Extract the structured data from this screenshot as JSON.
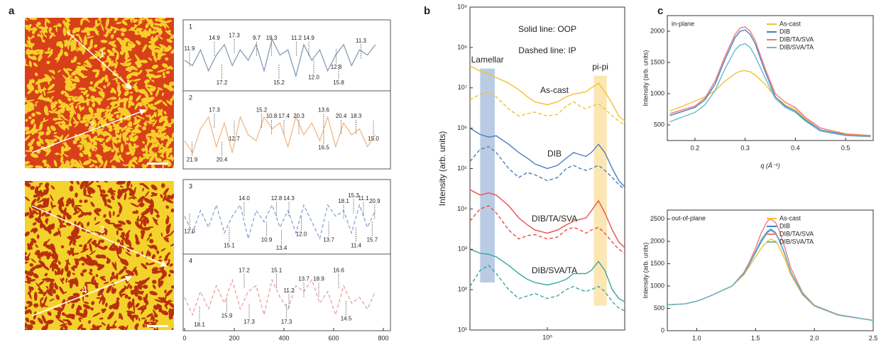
{
  "panels": [
    "a",
    "b",
    "c"
  ],
  "chart_data": [
    {
      "type": "line",
      "label": "1",
      "color": "#7d93b2",
      "xlim": [
        0,
        800
      ],
      "ylim": [
        0,
        10
      ],
      "x": [
        0,
        32,
        64,
        96,
        128,
        160,
        192,
        224,
        256,
        288,
        320,
        352,
        384,
        416,
        448,
        480,
        512,
        544,
        576,
        608,
        640,
        672,
        704,
        736,
        768
      ],
      "values": [
        5,
        4,
        7,
        3,
        6,
        8,
        4,
        7,
        5,
        8,
        3,
        9,
        6,
        7,
        2,
        8,
        5,
        7,
        3,
        6,
        8,
        4,
        7,
        6,
        8
      ],
      "annotations": [
        {
          "text": "11.9",
          "x": 20,
          "y": 6.5
        },
        {
          "text": "14.9",
          "x": 120,
          "y": 8.5
        },
        {
          "text": "17.2",
          "x": 150,
          "y": 1.5
        },
        {
          "text": "17.3",
          "x": 200,
          "y": 9
        },
        {
          "text": "9.7",
          "x": 290,
          "y": 8.5
        },
        {
          "text": "19.3",
          "x": 350,
          "y": 8.5
        },
        {
          "text": "15.2",
          "x": 380,
          "y": 1.5
        },
        {
          "text": "11.2",
          "x": 450,
          "y": 8.5
        },
        {
          "text": "14.9",
          "x": 500,
          "y": 8.5
        },
        {
          "text": "12.0",
          "x": 520,
          "y": 2.5
        },
        {
          "text": "12.8",
          "x": 610,
          "y": 4.5
        },
        {
          "text": "15.8",
          "x": 620,
          "y": 1.5
        },
        {
          "text": "11.3",
          "x": 710,
          "y": 8
        }
      ]
    },
    {
      "type": "line",
      "label": "2",
      "color": "#f2b27a",
      "xlim": [
        0,
        800
      ],
      "ylim": [
        0,
        10
      ],
      "x": [
        0,
        32,
        64,
        96,
        128,
        160,
        192,
        224,
        256,
        288,
        320,
        352,
        384,
        416,
        448,
        480,
        512,
        544,
        576,
        608,
        640,
        672,
        704,
        736,
        768
      ],
      "values": [
        4,
        2,
        6,
        8,
        3,
        7,
        2,
        8,
        5,
        4,
        8,
        6,
        7,
        3,
        8,
        5,
        7,
        4,
        8,
        3,
        7,
        5,
        6,
        3,
        5
      ],
      "annotations": [
        {
          "text": "21.9",
          "x": 30,
          "y": 1.5
        },
        {
          "text": "17.3",
          "x": 120,
          "y": 8.5
        },
        {
          "text": "20.4",
          "x": 150,
          "y": 1.5
        },
        {
          "text": "12.7",
          "x": 200,
          "y": 5
        },
        {
          "text": "15.2",
          "x": 310,
          "y": 8.5
        },
        {
          "text": "10.8",
          "x": 350,
          "y": 7.5
        },
        {
          "text": "17.4",
          "x": 400,
          "y": 7.5
        },
        {
          "text": "20.3",
          "x": 460,
          "y": 7.5
        },
        {
          "text": "13.6",
          "x": 560,
          "y": 8.5
        },
        {
          "text": "16.5",
          "x": 560,
          "y": 3.5
        },
        {
          "text": "20.4",
          "x": 630,
          "y": 7.5
        },
        {
          "text": "18.3",
          "x": 690,
          "y": 7.5
        },
        {
          "text": "15.0",
          "x": 760,
          "y": 5
        }
      ]
    },
    {
      "type": "line",
      "label": "3",
      "color": "#7d9fd0",
      "dashed": true,
      "xlim": [
        0,
        800
      ],
      "ylim": [
        0,
        10
      ],
      "x": [
        0,
        32,
        64,
        96,
        128,
        160,
        192,
        224,
        256,
        288,
        320,
        352,
        384,
        416,
        448,
        480,
        512,
        544,
        576,
        608,
        640,
        672,
        704,
        736,
        768
      ],
      "values": [
        6,
        3,
        7,
        4,
        8,
        3,
        6,
        8,
        2,
        7,
        5,
        8,
        4,
        7,
        3,
        8,
        5,
        2,
        8,
        6,
        7,
        3,
        8,
        4,
        7
      ],
      "annotations": [
        {
          "text": "12.0",
          "x": 20,
          "y": 4
        },
        {
          "text": "15.1",
          "x": 180,
          "y": 1.5
        },
        {
          "text": "14.0",
          "x": 240,
          "y": 8.5
        },
        {
          "text": "10.9",
          "x": 330,
          "y": 2.5
        },
        {
          "text": "12.8",
          "x": 370,
          "y": 8.5
        },
        {
          "text": "13.4",
          "x": 390,
          "y": 1
        },
        {
          "text": "14.3",
          "x": 420,
          "y": 8.5
        },
        {
          "text": "12.0",
          "x": 470,
          "y": 3.5
        },
        {
          "text": "13.7",
          "x": 580,
          "y": 2.5
        },
        {
          "text": "18.1",
          "x": 640,
          "y": 8
        },
        {
          "text": "15.3",
          "x": 680,
          "y": 9
        },
        {
          "text": "11.4",
          "x": 690,
          "y": 1.5
        },
        {
          "text": "11.1",
          "x": 720,
          "y": 8.5
        },
        {
          "text": "15.7",
          "x": 755,
          "y": 2.5
        },
        {
          "text": "20.9",
          "x": 765,
          "y": 8
        }
      ]
    },
    {
      "type": "line",
      "label": "4",
      "color": "#e89a9a",
      "dashed": true,
      "xlim": [
        0,
        800
      ],
      "ylim": [
        0,
        10
      ],
      "xticks": [
        0,
        200,
        400,
        600,
        800
      ],
      "x": [
        0,
        32,
        64,
        96,
        128,
        160,
        192,
        224,
        256,
        288,
        320,
        352,
        384,
        416,
        448,
        480,
        512,
        544,
        576,
        608,
        640,
        672,
        704,
        736,
        768
      ],
      "values": [
        5,
        2,
        6,
        3,
        7,
        4,
        8,
        3,
        6,
        7,
        2,
        8,
        5,
        3,
        7,
        6,
        8,
        4,
        6,
        2,
        7,
        4,
        5,
        3,
        6
      ],
      "annotations": [
        {
          "text": "18.1",
          "x": 60,
          "y": 1
        },
        {
          "text": "15.9",
          "x": 170,
          "y": 2.5
        },
        {
          "text": "17.2",
          "x": 240,
          "y": 9
        },
        {
          "text": "17.3",
          "x": 260,
          "y": 1.5
        },
        {
          "text": "15.1",
          "x": 370,
          "y": 9
        },
        {
          "text": "17.3",
          "x": 410,
          "y": 1.5
        },
        {
          "text": "11.2",
          "x": 420,
          "y": 5.5
        },
        {
          "text": "13.7",
          "x": 480,
          "y": 7.5
        },
        {
          "text": "18.9",
          "x": 540,
          "y": 7.5
        },
        {
          "text": "16.6",
          "x": 620,
          "y": 9
        },
        {
          "text": "14.5",
          "x": 650,
          "y": 2
        }
      ]
    },
    {
      "type": "line",
      "logx": true,
      "logy": true,
      "ylabel": "Intensity (arb. units)",
      "notes": [
        "Solid line: OOP",
        "Dashed line: IP"
      ],
      "xlim": [
        0.25,
        4
      ],
      "ylim": [
        10,
        1000000000
      ],
      "xticks": [
        {
          "value": 1,
          "label": "10⁰"
        }
      ],
      "yticks": [
        {
          "value": 10,
          "label": "10¹"
        },
        {
          "value": 100,
          "label": "10²"
        },
        {
          "value": 1000,
          "label": "10³"
        },
        {
          "value": 10000,
          "label": "10⁴"
        },
        {
          "value": 100000,
          "label": "10⁵"
        },
        {
          "value": 1000000,
          "label": "10⁶"
        },
        {
          "value": 10000000,
          "label": "10⁷"
        },
        {
          "value": 100000000,
          "label": "10⁸"
        },
        {
          "value": 1000000000,
          "label": "10⁹"
        }
      ],
      "bands": [
        {
          "label": "Lamellar",
          "range": [
            0.3,
            0.39
          ],
          "yrange": [
            150,
            30000000
          ],
          "color": "#a9bfdc"
        },
        {
          "label": "pi-pi",
          "range": [
            2.3,
            2.9
          ],
          "yrange": [
            40,
            20000000
          ],
          "color": "#fbe0a0"
        }
      ],
      "x": [
        0.25,
        0.3,
        0.35,
        0.4,
        0.5,
        0.6,
        0.7,
        0.8,
        1.0,
        1.2,
        1.4,
        1.6,
        1.8,
        2.0,
        2.2,
        2.5,
        2.8,
        3.2,
        3.6,
        4.0
      ],
      "series": [
        {
          "name": "As-cast",
          "color": "#f2c230",
          "values": [
            35000000,
            26000000,
            22000000,
            18000000,
            13000000,
            9000000,
            6000000,
            4500000,
            3800000,
            4500000,
            6000000,
            7000000,
            7500000,
            8000000,
            10000000,
            13000000,
            8000000,
            4000000,
            2000000,
            1500000
          ]
        },
        {
          "color": "#f2c230",
          "dashed": true,
          "values": [
            5000000,
            7000000,
            8000000,
            6000000,
            3000000,
            2000000,
            2300000,
            2500000,
            2000000,
            2200000,
            3500000,
            4500000,
            3500000,
            3000000,
            3500000,
            4000000,
            3000000,
            2000000,
            1500000,
            1200000
          ]
        },
        {
          "name": "DIB",
          "color": "#4a7fc1",
          "values": [
            1000000,
            700000,
            600000,
            650000,
            400000,
            250000,
            180000,
            130000,
            100000,
            120000,
            180000,
            250000,
            220000,
            200000,
            250000,
            400000,
            250000,
            100000,
            50000,
            35000
          ]
        },
        {
          "color": "#4a7fc1",
          "dashed": true,
          "values": [
            150000,
            300000,
            350000,
            250000,
            100000,
            60000,
            80000,
            70000,
            50000,
            60000,
            100000,
            120000,
            100000,
            90000,
            100000,
            120000,
            90000,
            60000,
            40000,
            30000
          ]
        },
        {
          "name": "DIB/TA/SVA",
          "color": "#e8504a",
          "values": [
            30000,
            22000,
            25000,
            22000,
            12000,
            6000,
            4000,
            3000,
            2500,
            3000,
            4000,
            5000,
            5500,
            6000,
            9000,
            16000,
            8000,
            3000,
            1500,
            1100
          ]
        },
        {
          "color": "#e8504a",
          "dashed": true,
          "values": [
            5000,
            10000,
            12000,
            8000,
            3000,
            1800,
            2200,
            2300,
            1800,
            2000,
            3000,
            3500,
            3000,
            2500,
            3000,
            3500,
            2500,
            1500,
            1000,
            800
          ]
        },
        {
          "name": "DIB/SVA/TA",
          "color": "#3aa7a0",
          "values": [
            1000,
            800,
            750,
            650,
            400,
            250,
            180,
            150,
            130,
            150,
            180,
            250,
            250,
            250,
            300,
            500,
            300,
            100,
            60,
            50
          ]
        },
        {
          "color": "#3aa7a0",
          "dashed": true,
          "values": [
            120,
            300,
            400,
            250,
            100,
            60,
            70,
            80,
            60,
            70,
            100,
            120,
            100,
            90,
            100,
            120,
            90,
            50,
            35,
            30
          ]
        }
      ]
    },
    {
      "type": "line",
      "title": "in-plane",
      "xlabel": "q (Å⁻¹)",
      "ylabel": "Intensity (arb. units)",
      "legend": "upper right",
      "xlim": [
        0.145,
        0.555
      ],
      "ylim": [
        250,
        2250
      ],
      "xticks": [
        0.2,
        0.3,
        0.4,
        0.5
      ],
      "yticks": [
        500,
        1000,
        1500,
        2000
      ],
      "x": [
        0.15,
        0.2,
        0.22,
        0.24,
        0.26,
        0.28,
        0.29,
        0.3,
        0.31,
        0.32,
        0.34,
        0.36,
        0.38,
        0.4,
        0.42,
        0.45,
        0.5,
        0.55
      ],
      "series": [
        {
          "name": "As-cast",
          "color": "#f2c230",
          "values": [
            720,
            880,
            950,
            1050,
            1200,
            1320,
            1360,
            1370,
            1350,
            1300,
            1150,
            950,
            820,
            750,
            600,
            450,
            360,
            330
          ]
        },
        {
          "name": "DIB",
          "color": "#4a7fc1",
          "values": [
            650,
            780,
            900,
            1150,
            1550,
            1900,
            2000,
            2020,
            1950,
            1800,
            1350,
            950,
            800,
            720,
            580,
            420,
            340,
            320
          ]
        },
        {
          "name": "DIB/TA/SVA",
          "color": "#f07a78",
          "values": [
            680,
            800,
            930,
            1200,
            1600,
            1950,
            2050,
            2070,
            2000,
            1850,
            1400,
            1000,
            860,
            780,
            620,
            450,
            350,
            330
          ]
        },
        {
          "name": "DIB/SVA/TA",
          "color": "#6bb8c4",
          "values": [
            550,
            700,
            820,
            1050,
            1400,
            1700,
            1780,
            1800,
            1740,
            1600,
            1250,
            920,
            780,
            700,
            560,
            400,
            330,
            310
          ]
        }
      ]
    },
    {
      "type": "line",
      "title": "out-of-plane",
      "ylabel": "Intensity (arb. units)",
      "legend": "upper right",
      "xlim": [
        0.75,
        2.5
      ],
      "ylim": [
        0,
        2700
      ],
      "xticks": [
        {
          "value": 1,
          "label": "1.0"
        },
        1.5,
        {
          "value": 2,
          "label": "2.0"
        },
        2.5
      ],
      "yticks": [
        0,
        500,
        1000,
        1500,
        2000,
        2500
      ],
      "x": [
        0.75,
        0.9,
        1.0,
        1.1,
        1.2,
        1.3,
        1.4,
        1.45,
        1.5,
        1.55,
        1.6,
        1.63,
        1.67,
        1.7,
        1.75,
        1.8,
        1.9,
        2.0,
        2.2,
        2.5
      ],
      "series": [
        {
          "name": "As-cast",
          "color": "#f2c230",
          "values": [
            580,
            600,
            660,
            760,
            880,
            1000,
            1250,
            1450,
            1650,
            1850,
            2000,
            2050,
            2000,
            1880,
            1600,
            1250,
            800,
            550,
            350,
            230
          ]
        },
        {
          "name": "DIB",
          "color": "#4a7fc1",
          "values": [
            580,
            600,
            660,
            760,
            880,
            1000,
            1270,
            1500,
            1750,
            2000,
            2200,
            2250,
            2180,
            2030,
            1700,
            1300,
            820,
            560,
            350,
            230
          ]
        },
        {
          "name": "DIB/TA/SVA",
          "color": "#f07a78",
          "values": [
            580,
            600,
            660,
            760,
            880,
            1000,
            1300,
            1550,
            1850,
            2200,
            2450,
            2500,
            2420,
            2250,
            1850,
            1400,
            850,
            570,
            360,
            230
          ]
        },
        {
          "name": "DIB/SVA/TA",
          "color": "#6bb8c4",
          "values": [
            580,
            600,
            660,
            760,
            880,
            1000,
            1280,
            1520,
            1780,
            2050,
            2230,
            2280,
            2200,
            2050,
            1720,
            1310,
            830,
            560,
            350,
            230
          ]
        }
      ]
    }
  ]
}
